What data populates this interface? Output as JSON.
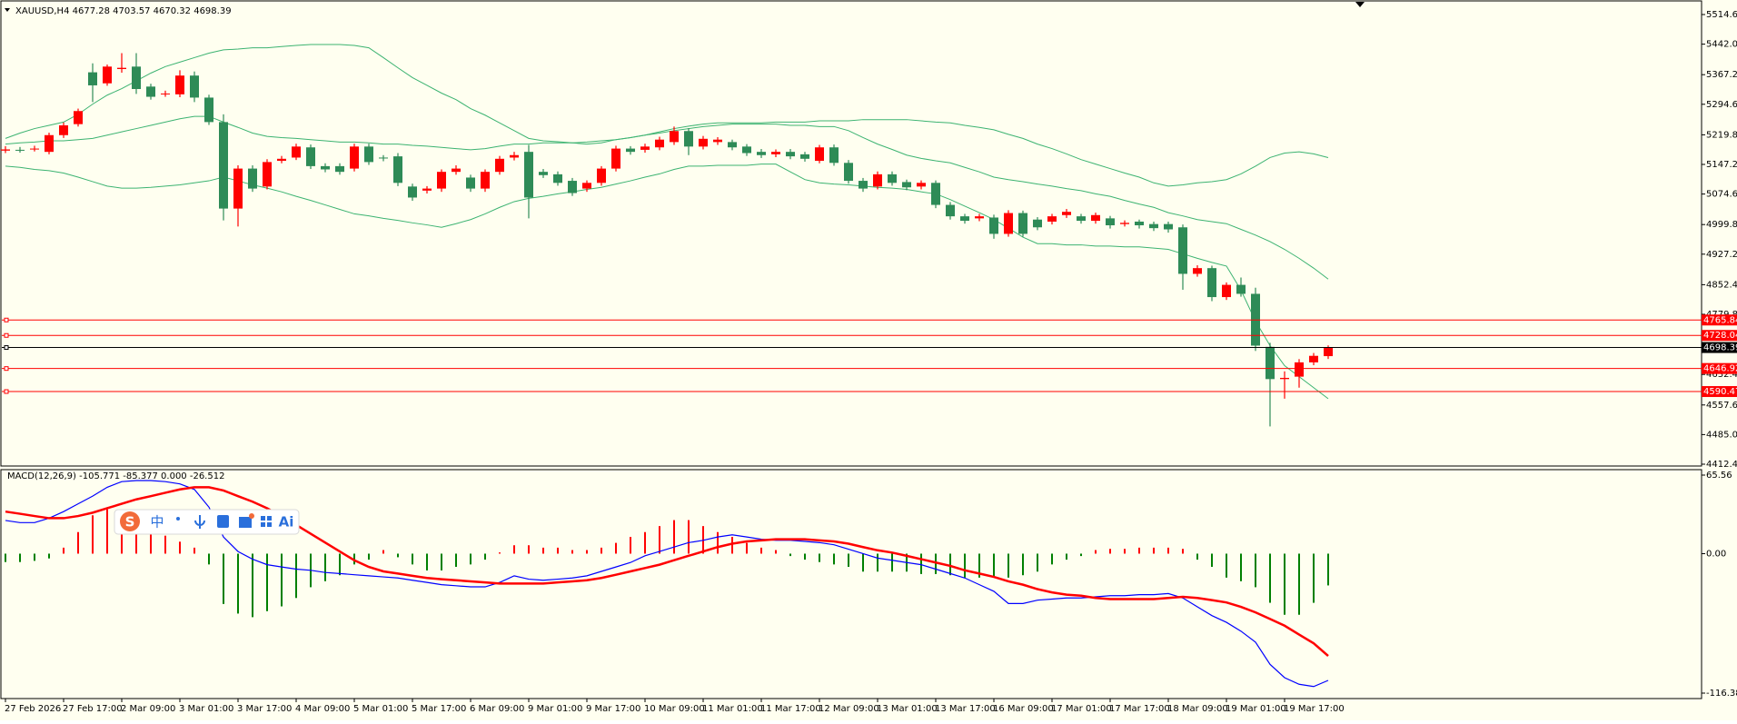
{
  "chart_data": [
    {
      "type": "candlestick",
      "title": "XAUUSD,H4  4677.28 4703.57 4670.32 4698.39",
      "categories": [
        "27 Feb 2026",
        null,
        null,
        null,
        "27 Feb 17:00",
        null,
        null,
        null,
        "2 Mar 09:00",
        null,
        null,
        null,
        "3 Mar 01:00",
        null,
        null,
        null,
        "3 Mar 17:00",
        null,
        null,
        null,
        "4 Mar 09:00",
        null,
        null,
        null,
        "5 Mar 01:00",
        null,
        null,
        null,
        "5 Mar 17:00",
        null,
        null,
        null,
        "6 Mar 09:00",
        null,
        null,
        null,
        "9 Mar 01:00",
        null,
        null,
        null,
        "9 Mar 17:00",
        null,
        null,
        null,
        "10 Mar 09:00",
        null,
        null,
        null,
        "11 Mar 01:00",
        null,
        null,
        null,
        "11 Mar 17:00",
        null,
        null,
        null,
        "12 Mar 09:00",
        null,
        null,
        null,
        "13 Mar 01:00",
        null,
        null,
        null,
        "13 Mar 17:00",
        null,
        null,
        null,
        "16 Mar 09:00",
        null,
        null,
        null,
        "17 Mar 01:00",
        null,
        null,
        null,
        "17 Mar 17:00",
        null,
        null,
        null,
        "18 Mar 09:00",
        null,
        null,
        null,
        "19 Mar 01:00",
        null,
        null,
        null,
        "19 Mar 17:00",
        null,
        null,
        null
      ],
      "open": [
        5181,
        5183,
        5185,
        5178,
        5219,
        5246,
        5373,
        5346,
        5381,
        5387,
        5338,
        5319,
        5319,
        5365,
        5311,
        5251,
        5039,
        5137,
        5093,
        5156,
        5164,
        5189,
        5143,
        5143,
        5137,
        5191,
        5164,
        5167,
        5093,
        5083,
        5088,
        5129,
        5115,
        5088,
        5129,
        5164,
        5178,
        5129,
        5123,
        5107,
        5088,
        5102,
        5137,
        5186,
        5183,
        5189,
        5202,
        5229,
        5191,
        5202,
        5202,
        5191,
        5178,
        5172,
        5178,
        5172,
        5156,
        5189,
        5151,
        5107,
        5093,
        5123,
        5104,
        5093,
        5102,
        5048,
        5020,
        5015,
        5017,
        4977,
        5028,
        5012,
        5007,
        5023,
        5020,
        5009,
        5015,
        5001,
        5007,
        5001,
        5001,
        4993,
        4879,
        4893,
        4822,
        4852,
        4830,
        4700,
        4621,
        4627,
        4662,
        4677.28
      ],
      "high": [
        5192,
        5190,
        5193,
        5225,
        5250,
        5284,
        5395,
        5392,
        5420,
        5420,
        5345,
        5328,
        5378,
        5375,
        5318,
        5270,
        5145,
        5145,
        5160,
        5168,
        5198,
        5196,
        5150,
        5150,
        5198,
        5198,
        5170,
        5175,
        5100,
        5094,
        5135,
        5145,
        5122,
        5135,
        5168,
        5178,
        5195,
        5136,
        5130,
        5114,
        5108,
        5143,
        5193,
        5192,
        5198,
        5215,
        5240,
        5236,
        5217,
        5214,
        5208,
        5197,
        5185,
        5184,
        5185,
        5178,
        5195,
        5196,
        5158,
        5114,
        5130,
        5130,
        5110,
        5108,
        5108,
        5055,
        5026,
        5026,
        5024,
        5035,
        5034,
        5018,
        5026,
        5038,
        5026,
        5029,
        5021,
        5010,
        5012,
        5007,
        5007,
        5000,
        4900,
        4899,
        4858,
        4870,
        4845,
        4710,
        4640,
        4670,
        4685,
        4703.57
      ],
      "low": [
        5175,
        5176,
        5179,
        5172,
        5212,
        5240,
        5300,
        5340,
        5372,
        5320,
        5306,
        5313,
        5312,
        5300,
        5244,
        5010,
        4995,
        5080,
        5086,
        5150,
        5158,
        5136,
        5128,
        5122,
        5130,
        5146,
        5155,
        5094,
        5058,
        5076,
        5080,
        5122,
        5080,
        5080,
        5122,
        5157,
        5015,
        5114,
        5095,
        5070,
        5080,
        5095,
        5130,
        5171,
        5176,
        5182,
        5195,
        5170,
        5184,
        5195,
        5182,
        5168,
        5163,
        5165,
        5160,
        5154,
        5150,
        5144,
        5100,
        5080,
        5086,
        5095,
        5084,
        5086,
        5040,
        5012,
        5002,
        5008,
        4965,
        4970,
        4970,
        4986,
        5000,
        5016,
        5002,
        5002,
        4990,
        4995,
        4990,
        4984,
        4980,
        4840,
        4872,
        4812,
        4815,
        4823,
        4690,
        4505,
        4573,
        4600,
        4655,
        4670.32
      ],
      "close": [
        5184,
        5182,
        5186,
        5219,
        5243,
        5278,
        5341,
        5387,
        5384,
        5332,
        5313,
        5321,
        5365,
        5311,
        5251,
        5039,
        5137,
        5088,
        5153,
        5161,
        5191,
        5143,
        5135,
        5129,
        5191,
        5153,
        5162,
        5102,
        5066,
        5088,
        5129,
        5137,
        5088,
        5129,
        5161,
        5170,
        5066,
        5121,
        5102,
        5077,
        5102,
        5137,
        5186,
        5178,
        5191,
        5208,
        5229,
        5191,
        5210,
        5208,
        5189,
        5175,
        5170,
        5178,
        5167,
        5161,
        5189,
        5151,
        5107,
        5088,
        5123,
        5102,
        5091,
        5102,
        5048,
        5020,
        5009,
        5020,
        4977,
        5028,
        4977,
        4993,
        5020,
        5031,
        5009,
        5023,
        4998,
        5004,
        4998,
        4991,
        4988,
        4879,
        4893,
        4822,
        4852,
        4830,
        4703,
        4621,
        4624,
        4662,
        4678,
        4698.39
      ],
      "up_color": "#ff0000",
      "down_color": "#2e8b57",
      "series": [
        {
          "color": "#3cb371",
          "values": [
            5211,
            5224,
            5235,
            5243,
            5251,
            5270,
            5295,
            5317,
            5333,
            5352,
            5371,
            5387,
            5398,
            5409,
            5420,
            5428,
            5430,
            5433,
            5433,
            5436,
            5439,
            5441,
            5441,
            5441,
            5439,
            5433,
            5409,
            5384,
            5360,
            5341,
            5322,
            5306,
            5284,
            5268,
            5249,
            5230,
            5211,
            5205,
            5203,
            5200,
            5197,
            5200,
            5208,
            5213,
            5219,
            5227,
            5235,
            5241,
            5246,
            5249,
            5249,
            5249,
            5249,
            5251,
            5251,
            5251,
            5254,
            5254,
            5254,
            5257,
            5257,
            5257,
            5257,
            5254,
            5251,
            5249,
            5243,
            5238,
            5232,
            5221,
            5211,
            5197,
            5186,
            5173,
            5159,
            5148,
            5137,
            5126,
            5116,
            5102,
            5094,
            5097,
            5102,
            5105,
            5110,
            5124,
            5143,
            5164,
            5175,
            5178,
            5173,
            5164
          ]
        },
        {
          "color": "#3cb371",
          "values": [
            5197,
            5200,
            5202,
            5205,
            5205,
            5208,
            5211,
            5219,
            5227,
            5235,
            5243,
            5251,
            5259,
            5265,
            5265,
            5251,
            5238,
            5224,
            5216,
            5213,
            5211,
            5208,
            5205,
            5202,
            5202,
            5200,
            5197,
            5197,
            5194,
            5192,
            5189,
            5186,
            5183,
            5186,
            5192,
            5197,
            5197,
            5200,
            5200,
            5200,
            5202,
            5205,
            5208,
            5213,
            5219,
            5224,
            5230,
            5235,
            5240,
            5243,
            5246,
            5246,
            5246,
            5246,
            5243,
            5243,
            5240,
            5240,
            5230,
            5213,
            5197,
            5184,
            5170,
            5162,
            5156,
            5151,
            5140,
            5129,
            5116,
            5110,
            5105,
            5099,
            5094,
            5088,
            5083,
            5075,
            5069,
            5059,
            5050,
            5042,
            5029,
            5021,
            5012,
            5007,
            5002,
            4988,
            4974,
            4958,
            4939,
            4917,
            4893,
            4866
          ]
        },
        {
          "color": "#3cb371",
          "values": [
            5143,
            5140,
            5135,
            5132,
            5126,
            5116,
            5105,
            5094,
            5089,
            5089,
            5091,
            5094,
            5097,
            5102,
            5107,
            5116,
            5107,
            5097,
            5089,
            5080,
            5069,
            5059,
            5048,
            5037,
            5026,
            5021,
            5015,
            5010,
            5004,
            4999,
            4993,
            5002,
            5012,
            5026,
            5042,
            5056,
            5064,
            5069,
            5075,
            5080,
            5086,
            5091,
            5099,
            5107,
            5116,
            5124,
            5135,
            5143,
            5143,
            5145,
            5145,
            5145,
            5148,
            5148,
            5129,
            5110,
            5102,
            5099,
            5097,
            5094,
            5091,
            5089,
            5086,
            5080,
            5075,
            5061,
            5045,
            5029,
            5012,
            4991,
            4969,
            4953,
            4953,
            4950,
            4950,
            4947,
            4947,
            4945,
            4945,
            4942,
            4939,
            4928,
            4917,
            4907,
            4898,
            4839,
            4763,
            4703,
            4654,
            4627,
            4600,
            4573
          ]
        }
      ],
      "levels": [
        4765.84,
        4728.04,
        4646.92,
        4590.47
      ],
      "level_color": "#ff0000",
      "last_price": 4698.39,
      "last_price_color": "#000000",
      "ylim": [
        4412.4,
        5514.6
      ],
      "yticks": [
        {
          "value": 5514.6,
          "label": "5514.60"
        },
        {
          "value": 5442,
          "label": "5442.00"
        },
        {
          "value": 5367.2,
          "label": "5367.20"
        },
        {
          "value": 5294.6,
          "label": "5294.60"
        },
        {
          "value": 5219.8,
          "label": "5219.80"
        },
        {
          "value": 5147.2,
          "label": "5147.20"
        },
        {
          "value": 5074.6,
          "label": "5074.60"
        },
        {
          "value": 4999.8,
          "label": "4999.80"
        },
        {
          "value": 4927.2,
          "label": "4927.20"
        },
        {
          "value": 4852.4,
          "label": "4852.40"
        },
        {
          "value": 4779.8,
          "label": "4779.80"
        },
        {
          "value": 4632.4,
          "label": "4632.40"
        },
        {
          "value": 4557.6,
          "label": "4557.60"
        },
        {
          "value": 4485,
          "label": "4485.00"
        },
        {
          "value": 4412.4,
          "label": "4412.40"
        }
      ]
    },
    {
      "type": "macd",
      "title": "MACD(12,26,9) -105.771 -85.377 0.000 -26.512",
      "series": [
        {
          "color": "#0000ff",
          "values": [
            27.7,
            25.9,
            25.9,
            29.6,
            35.1,
            41.6,
            48.0,
            55.4,
            60.1,
            61.0,
            61.0,
            60.1,
            58.2,
            53.6,
            38.8,
            13.9,
            1.8,
            -4.6,
            -9.2,
            -11.1,
            -12.9,
            -13.9,
            -15.7,
            -16.6,
            -17.6,
            -18.5,
            -19.4,
            -20.3,
            -22.2,
            -24.0,
            -25.9,
            -26.8,
            -27.7,
            -27.7,
            -24.0,
            -18.5,
            -21.3,
            -22.2,
            -21.3,
            -20.3,
            -18.5,
            -14.8,
            -11.1,
            -7.4,
            -1.8,
            1.8,
            5.5,
            9.2,
            11.1,
            13.9,
            15.7,
            13.9,
            12.0,
            11.1,
            11.1,
            10.2,
            9.2,
            7.4,
            3.7,
            0,
            -3.7,
            -5.5,
            -7.4,
            -9.2,
            -12.9,
            -16.6,
            -20.3,
            -25.9,
            -31.4,
            -41.6,
            -41.6,
            -38.8,
            -37.9,
            -37.0,
            -37.0,
            -36.0,
            -35.1,
            -35.1,
            -34.2,
            -34.2,
            -33.3,
            -37.0,
            -44.4,
            -51.7,
            -57.3,
            -64.7,
            -73.9,
            -92.4,
            -103.5,
            -109.0,
            -110.9,
            -105.771
          ]
        },
        {
          "color": "#ff0000",
          "values": [
            35.1,
            33.3,
            31.4,
            29.6,
            29.6,
            31.4,
            34.2,
            37.9,
            41.6,
            45.3,
            48.0,
            50.8,
            53.6,
            55.4,
            55.4,
            52.7,
            48.0,
            43.4,
            37.9,
            31.4,
            24.0,
            16.6,
            9.2,
            1.8,
            -5.5,
            -11.1,
            -14.8,
            -16.6,
            -18.5,
            -20.3,
            -21.3,
            -22.2,
            -23.1,
            -24.0,
            -24.9,
            -24.9,
            -24.9,
            -24.9,
            -24.0,
            -23.1,
            -22.2,
            -20.3,
            -17.6,
            -14.8,
            -12.0,
            -9.2,
            -5.5,
            -1.8,
            1.8,
            5.5,
            8.3,
            10.2,
            11.1,
            12.0,
            12.0,
            12.0,
            11.1,
            10.2,
            8.3,
            5.5,
            2.8,
            0.9,
            -1.8,
            -4.6,
            -7.4,
            -10.2,
            -13.9,
            -16.6,
            -19.4,
            -23.1,
            -25.9,
            -29.6,
            -32.3,
            -34.2,
            -35.1,
            -37.0,
            -37.9,
            -37.9,
            -37.9,
            -37.9,
            -37.0,
            -36.0,
            -37.0,
            -38.8,
            -40.7,
            -44.4,
            -49.0,
            -54.5,
            -60.1,
            -67.5,
            -74.8,
            -85.377
          ]
        }
      ],
      "histogram": {
        "up_color": "#ff0000",
        "down_color": "#008000",
        "values": [
          -7,
          -7,
          -6,
          -4,
          5,
          18,
          32,
          37,
          32,
          28,
          18,
          15,
          10,
          5,
          -9,
          -42,
          -50,
          -53,
          -48,
          -44,
          -37,
          -28,
          -23,
          -18,
          -9,
          -5,
          3,
          -3,
          -9,
          -14,
          -14,
          -11,
          -9,
          -5,
          1,
          7,
          7,
          5,
          5,
          3,
          3,
          5,
          9,
          14,
          18,
          23,
          28,
          28,
          23,
          18,
          14,
          9,
          5,
          3,
          -2,
          -5,
          -7,
          -9,
          -11,
          -15,
          -15,
          -15,
          -15,
          -17,
          -17,
          -18,
          -20,
          -20,
          -20,
          -20,
          -18,
          -15,
          -9,
          -5,
          -2,
          3,
          4,
          4,
          5,
          5,
          5,
          4,
          -5,
          -11,
          -20,
          -23,
          -28,
          -41,
          -51,
          -51,
          -41,
          -26.512
        ]
      },
      "ylim": [
        -116.386,
        65.56
      ],
      "yticks": [
        65.56,
        {
          "value": 0,
          "label": "0.00"
        },
        -116.386
      ]
    }
  ],
  "ime_toolbar": {
    "labels": [
      "中",
      "Ai"
    ]
  }
}
